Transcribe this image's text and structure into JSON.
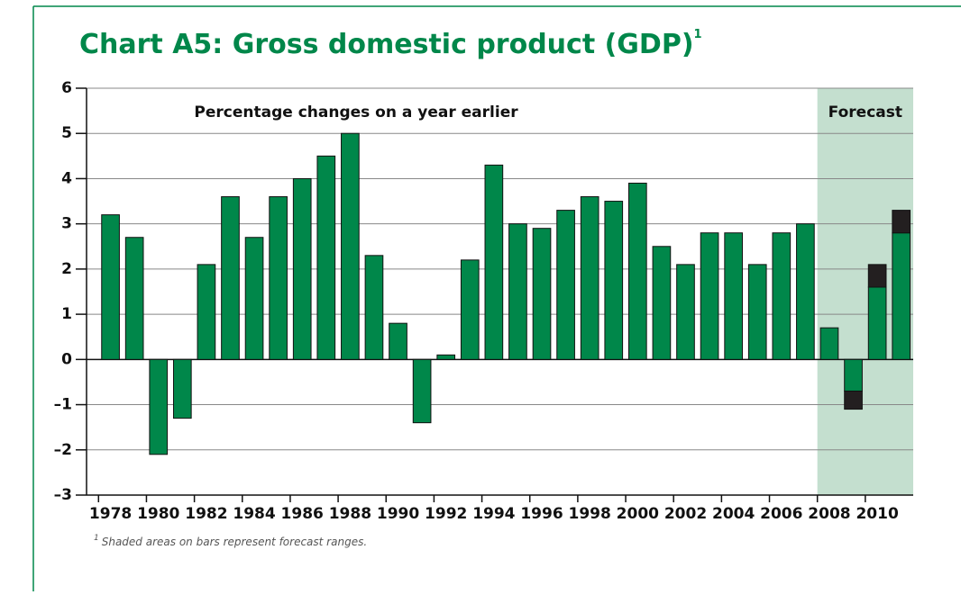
{
  "chart_data": {
    "type": "bar",
    "title": "Chart A5: Gross domestic product (GDP)",
    "title_note": "1",
    "subtitle": "Percentage changes on a year earlier",
    "footnote_mark": "1",
    "footnote": "Shaded areas on bars represent forecast ranges.",
    "forecast": {
      "label": "Forecast",
      "start": 2008,
      "color": "#c4dfcf"
    },
    "x": [
      1978,
      1979,
      1980,
      1981,
      1982,
      1983,
      1984,
      1985,
      1986,
      1987,
      1988,
      1989,
      1990,
      1991,
      1992,
      1993,
      1994,
      1995,
      1996,
      1997,
      1998,
      1999,
      2000,
      2001,
      2002,
      2003,
      2004,
      2005,
      2006,
      2007,
      2008,
      2009,
      2010,
      2011
    ],
    "values": [
      3.2,
      2.7,
      -2.1,
      -1.3,
      2.1,
      3.6,
      2.7,
      3.6,
      4.0,
      4.5,
      5.0,
      2.3,
      0.8,
      -1.4,
      0.1,
      2.2,
      4.3,
      3.0,
      2.9,
      3.3,
      3.6,
      3.5,
      3.9,
      2.5,
      2.1,
      2.8,
      2.8,
      2.1,
      2.8,
      3.0,
      0.7,
      -0.7,
      1.6,
      2.8
    ],
    "color": "#00874a",
    "forecast_range": [
      null,
      null,
      null,
      null,
      null,
      null,
      null,
      null,
      null,
      null,
      null,
      null,
      null,
      null,
      null,
      null,
      null,
      null,
      null,
      null,
      null,
      null,
      null,
      null,
      null,
      null,
      null,
      null,
      null,
      null,
      null,
      -0.4,
      0.5,
      0.5
    ],
    "range_color": "#231f20",
    "xlim": [
      1977,
      2011.5
    ],
    "xticks": [
      1978,
      1980,
      1982,
      1984,
      1986,
      1988,
      1990,
      1992,
      1994,
      1996,
      1998,
      2000,
      2002,
      2004,
      2006,
      2008,
      2010
    ],
    "ylim": [
      -3,
      6
    ],
    "yticks": [
      {
        "value": -3,
        "label": "–3"
      },
      {
        "value": -2,
        "label": "–2"
      },
      {
        "value": -1,
        "label": "–1"
      },
      0,
      1,
      2,
      3,
      4,
      5,
      6
    ],
    "grid": true
  }
}
